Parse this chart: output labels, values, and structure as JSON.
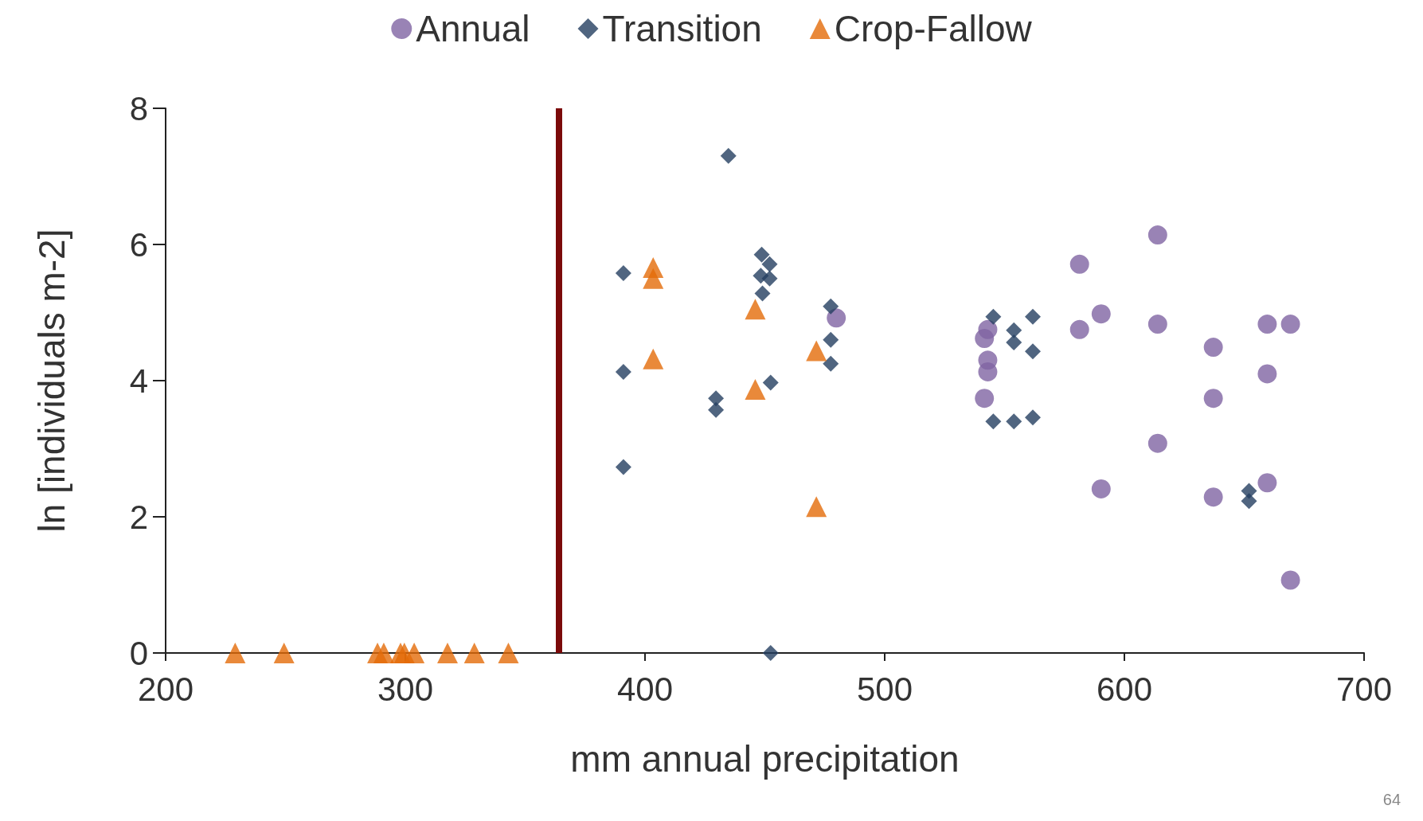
{
  "chart_data": {
    "type": "scatter",
    "xlabel": "mm annual precipitation",
    "ylabel": "ln [individuals m-2]",
    "xlim": [
      200,
      700
    ],
    "xticks": [
      200,
      300,
      400,
      500,
      600,
      700
    ],
    "ylim": [
      0,
      8
    ],
    "yticks": [
      0,
      2,
      4,
      6,
      8
    ],
    "grid": false,
    "legend": "top",
    "annotations": [
      "64"
    ],
    "ref_lines": [
      {
        "axis": "x",
        "value": 364,
        "color": "#7b0a0a"
      }
    ],
    "series": [
      {
        "name": "Annual",
        "color": "#8064a2",
        "marker": "circle",
        "x": [
          479.8,
          541.6,
          543,
          543,
          543,
          541.6,
          581.3,
          581.3,
          590.3,
          590.3,
          613.9,
          613.9,
          613.9,
          637.1,
          637.1,
          637.1,
          659.6,
          659.6,
          659.6,
          669.3,
          669.3
        ],
        "values": [
          4.92,
          4.62,
          4.75,
          4.3,
          4.13,
          3.74,
          5.71,
          4.75,
          4.98,
          2.41,
          6.14,
          4.83,
          3.08,
          4.49,
          3.74,
          2.29,
          4.83,
          4.1,
          2.5,
          4.83,
          1.07
        ]
      },
      {
        "name": "Transition",
        "color": "#243f60",
        "marker": "diamond",
        "x": [
          391,
          391,
          391,
          434.8,
          429.6,
          429.6,
          448.7,
          452,
          448.3,
          452,
          449,
          452.4,
          452.4,
          477.5,
          477.5,
          477.5,
          545.3,
          553.9,
          553.9,
          561.8,
          561.8,
          545.3,
          553.9,
          561.8,
          652,
          652
        ],
        "values": [
          5.58,
          4.13,
          2.73,
          7.3,
          3.74,
          3.57,
          5.85,
          5.71,
          5.54,
          5.5,
          5.28,
          3.97,
          0,
          5.09,
          4.6,
          4.25,
          4.94,
          4.74,
          4.56,
          4.94,
          4.43,
          3.4,
          3.4,
          3.46,
          2.38,
          2.23
        ]
      },
      {
        "name": "Crop-Fallow",
        "color": "#e36c09",
        "marker": "triangle",
        "x": [
          229,
          249.4,
          288.4,
          291,
          298,
          299.6,
          303.7,
          317.6,
          328.8,
          343,
          403.4,
          403.4,
          403.4,
          446,
          446,
          471.5,
          471.5
        ],
        "values": [
          0,
          0,
          0,
          0,
          0,
          0,
          0,
          0,
          0,
          0,
          5.66,
          5.5,
          4.32,
          5.05,
          3.87,
          4.44,
          2.15
        ]
      }
    ]
  }
}
